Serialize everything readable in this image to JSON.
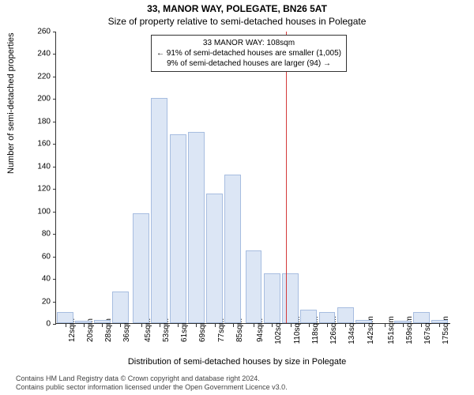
{
  "title_main": "33, MANOR WAY, POLEGATE, BN26 5AT",
  "title_sub": "Size of property relative to semi-detached houses in Polegate",
  "y_axis_label": "Number of semi-detached properties",
  "x_axis_label": "Distribution of semi-detached houses by size in Polegate",
  "copyright_line1": "Contains HM Land Registry data © Crown copyright and database right 2024.",
  "copyright_line2": "Contains public sector information licensed under the Open Government Licence v3.0.",
  "chart": {
    "type": "histogram",
    "ylim": [
      0,
      260
    ],
    "ytick_step": 20,
    "xlim": [
      8,
      180
    ],
    "x_ticks": [
      12,
      20,
      28,
      36,
      45,
      53,
      61,
      69,
      77,
      85,
      94,
      102,
      110,
      118,
      126,
      134,
      142,
      151,
      159,
      167,
      175
    ],
    "x_tick_suffix": "sqm",
    "bar_fill": "#dce6f5",
    "bar_stroke": "#a7bde0",
    "background": "#ffffff",
    "axis_color": "#333333",
    "text_color": "#000000",
    "bars": [
      {
        "x": 12,
        "y": 10
      },
      {
        "x": 20,
        "y": 2
      },
      {
        "x": 28,
        "y": 3
      },
      {
        "x": 36,
        "y": 28
      },
      {
        "x": 45,
        "y": 98
      },
      {
        "x": 53,
        "y": 200
      },
      {
        "x": 61,
        "y": 168
      },
      {
        "x": 69,
        "y": 170
      },
      {
        "x": 77,
        "y": 115
      },
      {
        "x": 85,
        "y": 132
      },
      {
        "x": 94,
        "y": 65
      },
      {
        "x": 102,
        "y": 44
      },
      {
        "x": 110,
        "y": 44
      },
      {
        "x": 118,
        "y": 12
      },
      {
        "x": 126,
        "y": 10
      },
      {
        "x": 134,
        "y": 14
      },
      {
        "x": 142,
        "y": 3
      },
      {
        "x": 151,
        "y": 0
      },
      {
        "x": 159,
        "y": 2
      },
      {
        "x": 167,
        "y": 10
      },
      {
        "x": 175,
        "y": 3
      }
    ],
    "bar_width_data": 7.2,
    "marker": {
      "value": 108,
      "color": "#d43a3a"
    },
    "annotation": {
      "line1": "33 MANOR WAY: 108sqm",
      "line2": "← 91% of semi-detached houses are smaller (1,005)",
      "line3": "9% of semi-detached houses are larger (94) →",
      "border_color": "#333333",
      "bg_color": "#ffffff",
      "fontsize": 10
    }
  }
}
